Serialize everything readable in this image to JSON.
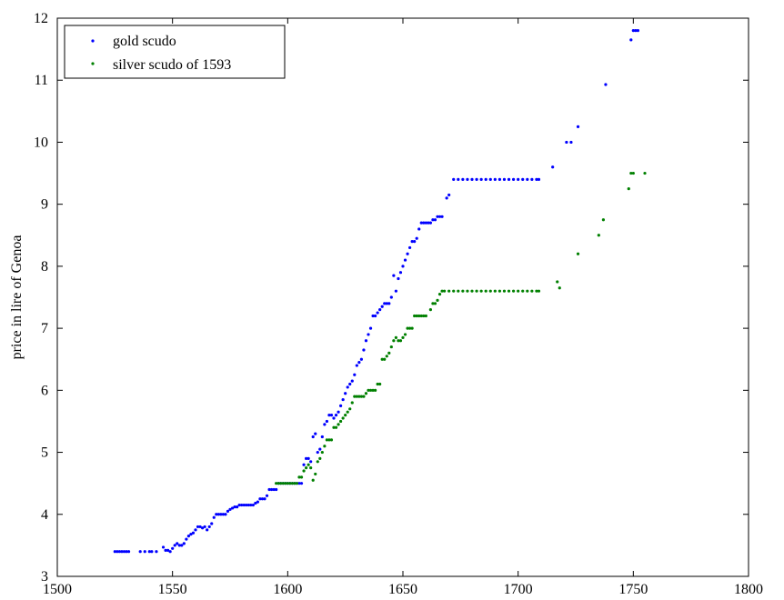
{
  "chart_data": {
    "type": "scatter",
    "title": "",
    "xlabel": "",
    "ylabel": "price in lire of Genoa",
    "xlim": [
      1500,
      1800
    ],
    "ylim": [
      3,
      12
    ],
    "xticks": [
      "1500",
      "1550",
      "1600",
      "1650",
      "1700",
      "1750",
      "1800"
    ],
    "yticks": [
      "3",
      "4",
      "5",
      "6",
      "7",
      "8",
      "9",
      "10",
      "11",
      "12"
    ],
    "grid": false,
    "legend": "top-left",
    "series": [
      {
        "name": "gold scudo",
        "color": "#0000ff",
        "points": [
          [
            1525,
            3.4
          ],
          [
            1526,
            3.4
          ],
          [
            1527,
            3.4
          ],
          [
            1528,
            3.4
          ],
          [
            1529,
            3.4
          ],
          [
            1530,
            3.4
          ],
          [
            1531,
            3.4
          ],
          [
            1536,
            3.4
          ],
          [
            1538,
            3.4
          ],
          [
            1540,
            3.4
          ],
          [
            1541,
            3.4
          ],
          [
            1543,
            3.4
          ],
          [
            1546,
            3.47
          ],
          [
            1547,
            3.42
          ],
          [
            1548,
            3.42
          ],
          [
            1549,
            3.4
          ],
          [
            1550,
            3.45
          ],
          [
            1551,
            3.5
          ],
          [
            1552,
            3.53
          ],
          [
            1553,
            3.5
          ],
          [
            1554,
            3.5
          ],
          [
            1555,
            3.53
          ],
          [
            1556,
            3.6
          ],
          [
            1557,
            3.65
          ],
          [
            1558,
            3.68
          ],
          [
            1559,
            3.7
          ],
          [
            1560,
            3.75
          ],
          [
            1561,
            3.8
          ],
          [
            1562,
            3.8
          ],
          [
            1563,
            3.78
          ],
          [
            1564,
            3.8
          ],
          [
            1565,
            3.75
          ],
          [
            1566,
            3.8
          ],
          [
            1567,
            3.85
          ],
          [
            1568,
            3.95
          ],
          [
            1569,
            4.0
          ],
          [
            1570,
            4.0
          ],
          [
            1571,
            4.0
          ],
          [
            1572,
            4.0
          ],
          [
            1573,
            4.0
          ],
          [
            1574,
            4.05
          ],
          [
            1575,
            4.08
          ],
          [
            1576,
            4.1
          ],
          [
            1577,
            4.12
          ],
          [
            1578,
            4.12
          ],
          [
            1579,
            4.15
          ],
          [
            1580,
            4.15
          ],
          [
            1581,
            4.15
          ],
          [
            1582,
            4.15
          ],
          [
            1583,
            4.15
          ],
          [
            1584,
            4.15
          ],
          [
            1585,
            4.15
          ],
          [
            1586,
            4.18
          ],
          [
            1587,
            4.2
          ],
          [
            1588,
            4.25
          ],
          [
            1589,
            4.25
          ],
          [
            1590,
            4.25
          ],
          [
            1591,
            4.3
          ],
          [
            1592,
            4.4
          ],
          [
            1593,
            4.4
          ],
          [
            1594,
            4.4
          ],
          [
            1595,
            4.4
          ],
          [
            1596,
            4.5
          ],
          [
            1597,
            4.5
          ],
          [
            1598,
            4.5
          ],
          [
            1599,
            4.5
          ],
          [
            1600,
            4.5
          ],
          [
            1601,
            4.5
          ],
          [
            1602,
            4.5
          ],
          [
            1603,
            4.5
          ],
          [
            1604,
            4.5
          ],
          [
            1605,
            4.5
          ],
          [
            1606,
            4.5
          ],
          [
            1607,
            4.8
          ],
          [
            1608,
            4.9
          ],
          [
            1609,
            4.9
          ],
          [
            1610,
            4.85
          ],
          [
            1611,
            5.25
          ],
          [
            1612,
            5.3
          ],
          [
            1613,
            5.0
          ],
          [
            1614,
            5.05
          ],
          [
            1615,
            5.25
          ],
          [
            1616,
            5.45
          ],
          [
            1617,
            5.5
          ],
          [
            1618,
            5.6
          ],
          [
            1619,
            5.6
          ],
          [
            1620,
            5.55
          ],
          [
            1621,
            5.6
          ],
          [
            1622,
            5.65
          ],
          [
            1623,
            5.75
          ],
          [
            1624,
            5.85
          ],
          [
            1625,
            5.95
          ],
          [
            1626,
            6.05
          ],
          [
            1627,
            6.1
          ],
          [
            1628,
            6.15
          ],
          [
            1629,
            6.25
          ],
          [
            1630,
            6.4
          ],
          [
            1631,
            6.45
          ],
          [
            1632,
            6.5
          ],
          [
            1633,
            6.65
          ],
          [
            1634,
            6.8
          ],
          [
            1635,
            6.9
          ],
          [
            1636,
            7.0
          ],
          [
            1637,
            7.2
          ],
          [
            1638,
            7.2
          ],
          [
            1639,
            7.25
          ],
          [
            1640,
            7.3
          ],
          [
            1641,
            7.35
          ],
          [
            1642,
            7.4
          ],
          [
            1643,
            7.4
          ],
          [
            1644,
            7.4
          ],
          [
            1645,
            7.5
          ],
          [
            1646,
            7.85
          ],
          [
            1647,
            7.6
          ],
          [
            1648,
            7.8
          ],
          [
            1649,
            7.9
          ],
          [
            1650,
            8.0
          ],
          [
            1651,
            8.1
          ],
          [
            1652,
            8.2
          ],
          [
            1653,
            8.3
          ],
          [
            1654,
            8.4
          ],
          [
            1655,
            8.4
          ],
          [
            1656,
            8.45
          ],
          [
            1657,
            8.6
          ],
          [
            1658,
            8.7
          ],
          [
            1659,
            8.7
          ],
          [
            1660,
            8.7
          ],
          [
            1661,
            8.7
          ],
          [
            1662,
            8.7
          ],
          [
            1663,
            8.75
          ],
          [
            1664,
            8.75
          ],
          [
            1665,
            8.8
          ],
          [
            1666,
            8.8
          ],
          [
            1667,
            8.8
          ],
          [
            1669,
            9.1
          ],
          [
            1670,
            9.15
          ],
          [
            1672,
            9.4
          ],
          [
            1674,
            9.4
          ],
          [
            1676,
            9.4
          ],
          [
            1678,
            9.4
          ],
          [
            1680,
            9.4
          ],
          [
            1682,
            9.4
          ],
          [
            1684,
            9.4
          ],
          [
            1686,
            9.4
          ],
          [
            1688,
            9.4
          ],
          [
            1690,
            9.4
          ],
          [
            1692,
            9.4
          ],
          [
            1694,
            9.4
          ],
          [
            1696,
            9.4
          ],
          [
            1698,
            9.4
          ],
          [
            1700,
            9.4
          ],
          [
            1702,
            9.4
          ],
          [
            1704,
            9.4
          ],
          [
            1706,
            9.4
          ],
          [
            1708,
            9.4
          ],
          [
            1709,
            9.4
          ],
          [
            1715,
            9.6
          ],
          [
            1721,
            10.0
          ],
          [
            1723,
            10.0
          ],
          [
            1726,
            10.25
          ],
          [
            1738,
            10.93
          ],
          [
            1749,
            11.65
          ],
          [
            1750,
            11.8
          ],
          [
            1751,
            11.8
          ],
          [
            1752,
            11.8
          ]
        ]
      },
      {
        "name": "silver scudo of 1593",
        "color": "#008000",
        "points": [
          [
            1595,
            4.5
          ],
          [
            1596,
            4.5
          ],
          [
            1597,
            4.5
          ],
          [
            1598,
            4.5
          ],
          [
            1599,
            4.5
          ],
          [
            1600,
            4.5
          ],
          [
            1601,
            4.5
          ],
          [
            1602,
            4.5
          ],
          [
            1603,
            4.5
          ],
          [
            1604,
            4.5
          ],
          [
            1605,
            4.6
          ],
          [
            1606,
            4.6
          ],
          [
            1607,
            4.7
          ],
          [
            1608,
            4.75
          ],
          [
            1609,
            4.8
          ],
          [
            1610,
            4.75
          ],
          [
            1611,
            4.55
          ],
          [
            1612,
            4.65
          ],
          [
            1613,
            4.85
          ],
          [
            1614,
            4.9
          ],
          [
            1615,
            5.0
          ],
          [
            1616,
            5.1
          ],
          [
            1617,
            5.2
          ],
          [
            1618,
            5.2
          ],
          [
            1619,
            5.2
          ],
          [
            1620,
            5.4
          ],
          [
            1621,
            5.4
          ],
          [
            1622,
            5.45
          ],
          [
            1623,
            5.5
          ],
          [
            1624,
            5.55
          ],
          [
            1625,
            5.6
          ],
          [
            1626,
            5.65
          ],
          [
            1627,
            5.7
          ],
          [
            1628,
            5.8
          ],
          [
            1629,
            5.9
          ],
          [
            1630,
            5.9
          ],
          [
            1631,
            5.9
          ],
          [
            1632,
            5.9
          ],
          [
            1633,
            5.9
          ],
          [
            1634,
            5.95
          ],
          [
            1635,
            6.0
          ],
          [
            1636,
            6.0
          ],
          [
            1637,
            6.0
          ],
          [
            1638,
            6.0
          ],
          [
            1639,
            6.1
          ],
          [
            1640,
            6.1
          ],
          [
            1641,
            6.5
          ],
          [
            1642,
            6.5
          ],
          [
            1643,
            6.55
          ],
          [
            1644,
            6.6
          ],
          [
            1645,
            6.7
          ],
          [
            1646,
            6.8
          ],
          [
            1647,
            6.85
          ],
          [
            1648,
            6.8
          ],
          [
            1649,
            6.8
          ],
          [
            1650,
            6.85
          ],
          [
            1651,
            6.9
          ],
          [
            1652,
            7.0
          ],
          [
            1653,
            7.0
          ],
          [
            1654,
            7.0
          ],
          [
            1655,
            7.2
          ],
          [
            1656,
            7.2
          ],
          [
            1657,
            7.2
          ],
          [
            1658,
            7.2
          ],
          [
            1659,
            7.2
          ],
          [
            1660,
            7.2
          ],
          [
            1662,
            7.3
          ],
          [
            1663,
            7.4
          ],
          [
            1664,
            7.4
          ],
          [
            1665,
            7.45
          ],
          [
            1666,
            7.55
          ],
          [
            1667,
            7.6
          ],
          [
            1668,
            7.6
          ],
          [
            1670,
            7.6
          ],
          [
            1672,
            7.6
          ],
          [
            1674,
            7.6
          ],
          [
            1676,
            7.6
          ],
          [
            1678,
            7.6
          ],
          [
            1680,
            7.6
          ],
          [
            1682,
            7.6
          ],
          [
            1684,
            7.6
          ],
          [
            1686,
            7.6
          ],
          [
            1688,
            7.6
          ],
          [
            1690,
            7.6
          ],
          [
            1692,
            7.6
          ],
          [
            1694,
            7.6
          ],
          [
            1696,
            7.6
          ],
          [
            1698,
            7.6
          ],
          [
            1700,
            7.6
          ],
          [
            1702,
            7.6
          ],
          [
            1704,
            7.6
          ],
          [
            1706,
            7.6
          ],
          [
            1708,
            7.6
          ],
          [
            1709,
            7.6
          ],
          [
            1717,
            7.75
          ],
          [
            1718,
            7.65
          ],
          [
            1726,
            8.2
          ],
          [
            1735,
            8.5
          ],
          [
            1737,
            8.75
          ],
          [
            1748,
            9.25
          ],
          [
            1749,
            9.5
          ],
          [
            1750,
            9.5
          ],
          [
            1755,
            9.5
          ]
        ]
      }
    ]
  }
}
